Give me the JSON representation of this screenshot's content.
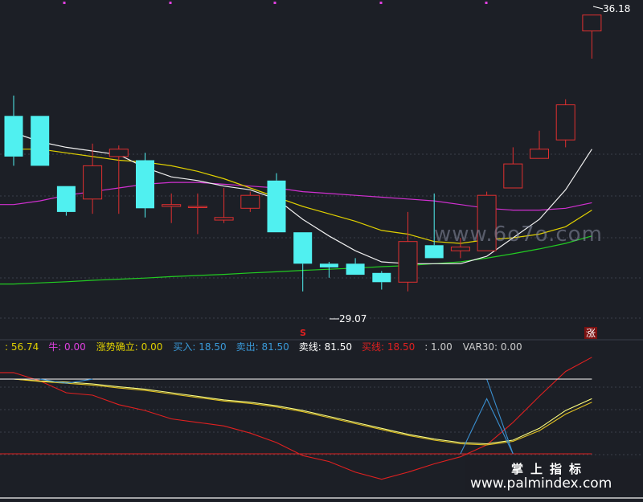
{
  "chart_data": [
    {
      "type": "candlestick",
      "ylim": [
        27.5,
        36.5
      ],
      "candles": [
        {
          "o": 33.45,
          "c": 32.35,
          "h": 34.0,
          "l": 32.1
        },
        {
          "o": 33.45,
          "c": 32.1,
          "h": 33.45,
          "l": 32.1
        },
        {
          "o": 31.55,
          "c": 30.85,
          "h": 31.55,
          "l": 30.75
        },
        {
          "o": 31.2,
          "c": 32.1,
          "h": 32.7,
          "l": 30.8
        },
        {
          "o": 32.35,
          "c": 32.55,
          "h": 32.65,
          "l": 30.8
        },
        {
          "o": 32.25,
          "c": 30.95,
          "h": 32.45,
          "l": 30.7
        },
        {
          "o": 31.0,
          "c": 31.05,
          "h": 31.35,
          "l": 30.55
        },
        {
          "o": 31.0,
          "c": 31.0,
          "h": 31.35,
          "l": 30.25
        },
        {
          "o": 30.63,
          "c": 30.7,
          "h": 31.5,
          "l": 30.55
        },
        {
          "o": 30.95,
          "c": 31.3,
          "h": 31.4,
          "l": 30.85
        },
        {
          "o": 31.7,
          "c": 30.3,
          "h": 31.9,
          "l": 30.3
        },
        {
          "o": 30.3,
          "c": 29.45,
          "h": 30.3,
          "l": 28.7
        },
        {
          "o": 29.45,
          "c": 29.35,
          "h": 29.5,
          "l": 29.07
        },
        {
          "o": 29.45,
          "c": 29.15,
          "h": 29.6,
          "l": 29.15
        },
        {
          "o": 29.2,
          "c": 28.95,
          "h": 29.25,
          "l": 28.75
        },
        {
          "o": 28.95,
          "c": 30.05,
          "h": 30.85,
          "l": 28.7
        },
        {
          "o": 29.95,
          "c": 29.6,
          "h": 31.35,
          "l": 29.6
        },
        {
          "o": 29.8,
          "c": 29.9,
          "h": 30.15,
          "l": 29.6
        },
        {
          "o": 29.8,
          "c": 31.3,
          "h": 31.4,
          "l": 29.8
        },
        {
          "o": 31.5,
          "c": 32.15,
          "h": 32.6,
          "l": 31.5
        },
        {
          "o": 32.3,
          "c": 32.55,
          "h": 33.05,
          "l": 32.3
        },
        {
          "o": 32.8,
          "c": 33.75,
          "h": 33.9,
          "l": 32.6
        },
        {
          "o": 35.75,
          "c": 36.18,
          "h": 36.18,
          "l": 35.0
        }
      ],
      "ma_white": [
        33.0,
        32.75,
        32.6,
        32.5,
        32.4,
        32.05,
        31.8,
        31.7,
        31.55,
        31.45,
        31.2,
        30.65,
        30.2,
        29.8,
        29.5,
        29.45,
        29.45,
        29.45,
        29.65,
        30.15,
        30.65,
        31.45,
        32.55
      ],
      "ma_yellow": [
        32.55,
        32.55,
        32.45,
        32.35,
        32.25,
        32.2,
        32.1,
        31.95,
        31.75,
        31.5,
        31.25,
        31.0,
        30.8,
        30.6,
        30.35,
        30.25,
        30.05,
        30.0,
        30.1,
        30.15,
        30.25,
        30.45,
        30.9
      ],
      "ma_magenta": [
        31.05,
        31.15,
        31.3,
        31.4,
        31.5,
        31.6,
        31.65,
        31.65,
        31.6,
        31.55,
        31.5,
        31.4,
        31.35,
        31.3,
        31.25,
        31.2,
        31.15,
        31.05,
        30.95,
        30.9,
        30.9,
        30.95,
        31.1
      ],
      "ma_green": [
        28.9,
        28.93,
        28.96,
        29.0,
        29.03,
        29.06,
        29.1,
        29.13,
        29.16,
        29.2,
        29.23,
        29.27,
        29.3,
        29.33,
        29.37,
        29.4,
        29.45,
        29.5,
        29.6,
        29.72,
        29.85,
        30.0,
        30.2
      ],
      "annotations": {
        "high_label": "36.18",
        "low_label": "29.07",
        "sell_marker": "S",
        "rise_marker": "涨"
      }
    },
    {
      "type": "line",
      "ylim": [
        -12,
        110
      ],
      "legend": [
        {
          "name": "",
          "value": "56.74",
          "color": "#e0d000"
        },
        {
          "name": "牛",
          "value": "0.00",
          "color": "#e040e0"
        },
        {
          "name": "涨势确立",
          "value": "0.00",
          "color": "#e0d000"
        },
        {
          "name": "买入",
          "value": "18.50",
          "color": "#3a9ad9"
        },
        {
          "name": "卖出",
          "value": "81.50",
          "color": "#3a9ad9"
        },
        {
          "name": "卖线",
          "value": "81.50",
          "color": "#ffffff"
        },
        {
          "name": "买线",
          "value": "18.50",
          "color": "#e02020"
        },
        {
          "name": "",
          "value": "1.00",
          "color": "#cccccc"
        },
        {
          "name": "VAR30",
          "value": "0.00",
          "color": "#cccccc"
        }
      ],
      "series": [
        {
          "color": "#e02020",
          "values": [
            87,
            80,
            70,
            68,
            60,
            55,
            48,
            45,
            42,
            36,
            28,
            17,
            12,
            3,
            -3,
            3,
            10,
            16,
            26,
            45,
            67,
            88,
            100
          ]
        },
        {
          "color": "#ffff80",
          "values": [
            81.5,
            80,
            79,
            77.5,
            75,
            73,
            70,
            67,
            64,
            62,
            59,
            55,
            50,
            45,
            40,
            35,
            31,
            28,
            27,
            30,
            40,
            55,
            65
          ]
        },
        {
          "color": "#e0c020",
          "values": [
            81.5,
            79.5,
            78,
            76.5,
            74,
            72,
            69,
            66,
            63,
            61,
            58,
            54,
            49,
            44,
            39,
            34,
            30,
            27,
            26,
            29,
            38,
            52,
            62
          ]
        },
        {
          "color": "#3a8fd0",
          "values": [
            81.5,
            81.5,
            81.5,
            81.5,
            81.5,
            81.5,
            81.5,
            81.5,
            81.5,
            81.5,
            81.5,
            81.5,
            81.5,
            81.5,
            81.5,
            81.5,
            81.5,
            81.5,
            81.5,
            18.5,
            18.5,
            18.5,
            18.5
          ]
        },
        {
          "color": "#ffffff",
          "values": [
            81.5,
            81.5,
            81.5,
            81.5,
            81.5,
            81.5,
            81.5,
            81.5,
            81.5,
            81.5,
            81.5,
            81.5,
            81.5,
            81.5,
            81.5,
            81.5,
            81.5,
            81.5,
            81.5,
            81.5,
            81.5,
            81.5,
            81.5
          ]
        },
        {
          "color": "#e02020",
          "values": [
            18.5,
            18.5,
            18.5,
            18.5,
            18.5,
            18.5,
            18.5,
            18.5,
            18.5,
            18.5,
            18.5,
            18.5,
            18.5,
            18.5,
            18.5,
            18.5,
            18.5,
            18.5,
            18.5,
            18.5,
            18.5,
            18.5,
            18.5
          ]
        }
      ]
    }
  ],
  "watermarks": {
    "site_top": "www.6o7o.com",
    "cn": "掌上指标",
    "site_bottom": "www.palmindex.com"
  }
}
